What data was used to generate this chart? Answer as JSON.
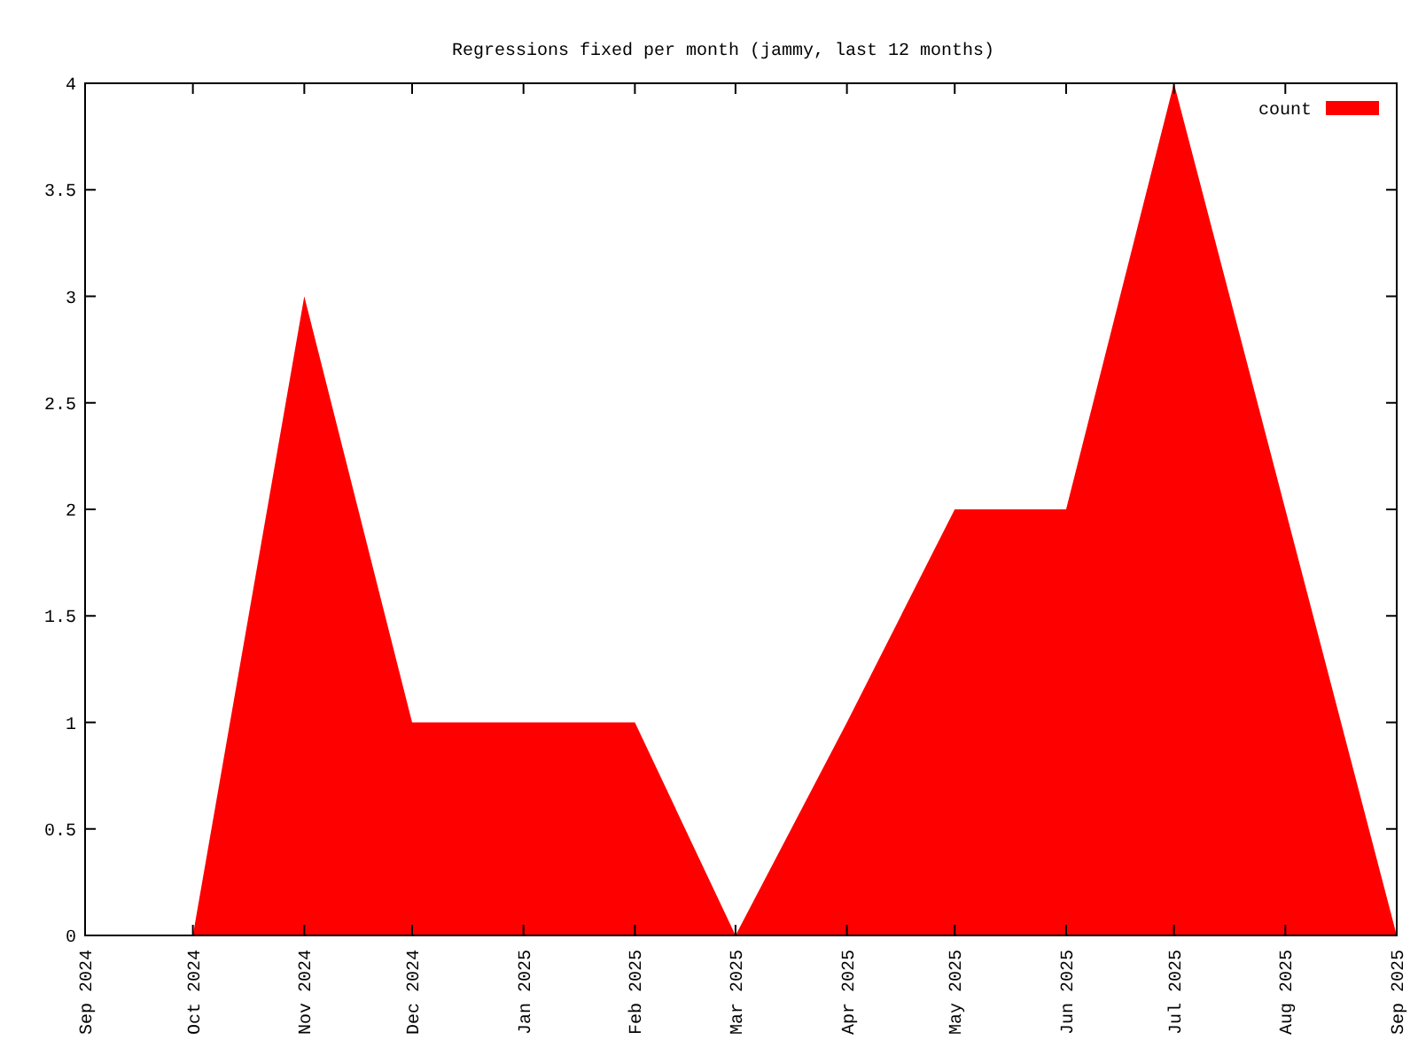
{
  "chart_data": {
    "type": "area",
    "title": "Regressions fixed per month (jammy, last 12 months)",
    "x": [
      "2024-10",
      "2024-11",
      "2024-12",
      "2025-01",
      "2025-02",
      "2025-03",
      "2025-04",
      "2025-05",
      "2025-06",
      "2025-07",
      "2025-08",
      "2025-09"
    ],
    "series": [
      {
        "name": "count",
        "color": "#ff0000",
        "values": [
          0,
          3,
          1,
          1,
          1,
          0,
          1,
          2,
          2,
          4,
          2,
          0
        ]
      }
    ],
    "xlim": [
      "2024-09",
      "2025-09"
    ],
    "xticks": [
      {
        "value": "2024-09",
        "label": "Sep 2024"
      },
      {
        "value": "2024-10",
        "label": "Oct 2024"
      },
      {
        "value": "2024-11",
        "label": "Nov 2024"
      },
      {
        "value": "2024-12",
        "label": "Dec 2024"
      },
      {
        "value": "2025-01",
        "label": "Jan 2025"
      },
      {
        "value": "2025-02",
        "label": "Feb 2025"
      },
      {
        "value": "2025-03",
        "label": "Mar 2025"
      },
      {
        "value": "2025-04",
        "label": "Apr 2025"
      },
      {
        "value": "2025-05",
        "label": "May 2025"
      },
      {
        "value": "2025-06",
        "label": "Jun 2025"
      },
      {
        "value": "2025-07",
        "label": "Jul 2025"
      },
      {
        "value": "2025-08",
        "label": "Aug 2025"
      },
      {
        "value": "2025-09",
        "label": "Sep 2025"
      }
    ],
    "ylim": [
      0,
      4
    ],
    "yticks": [
      0,
      0.5,
      1,
      1.5,
      2,
      2.5,
      3,
      3.5,
      4
    ],
    "legend": "top right",
    "grid": false
  }
}
